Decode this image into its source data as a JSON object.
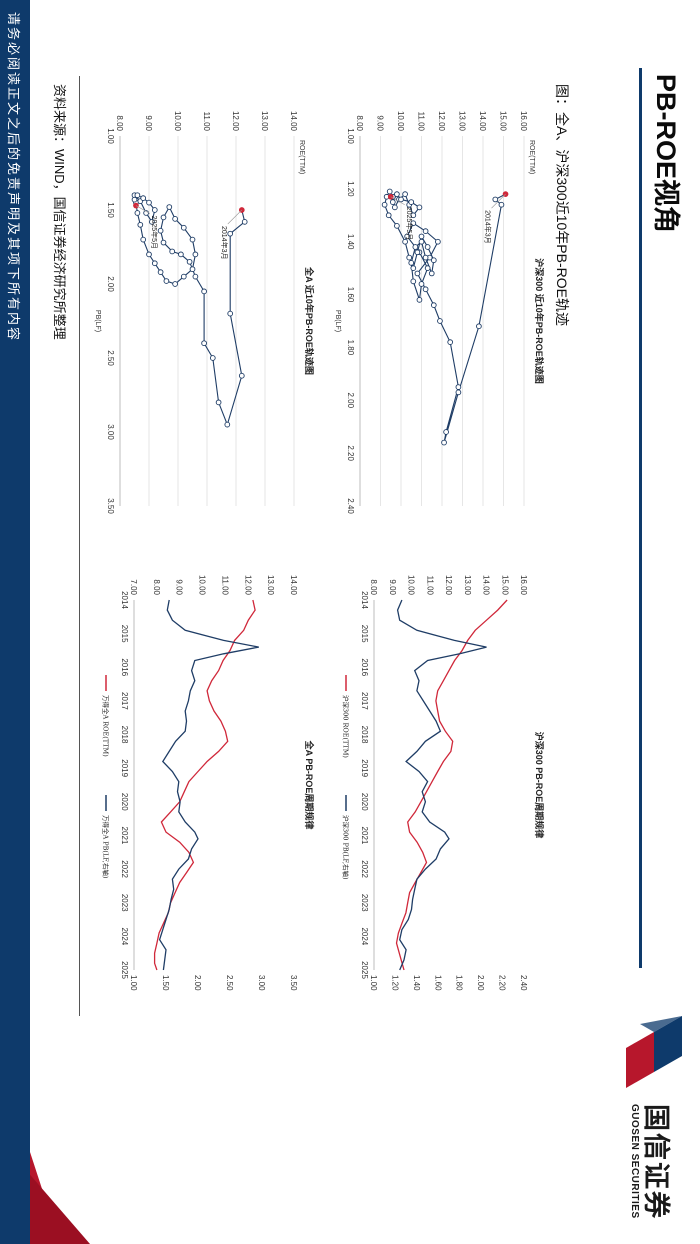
{
  "header": {
    "title": "PB-ROE视角",
    "logo_cn": "国信证券",
    "logo_en": "GUOSEN SECURITIES",
    "colors": {
      "navy": "#0e3a6b",
      "red": "#b7172c"
    }
  },
  "figure_caption": "图：全A、沪深300近10年PB-ROE轨迹",
  "source_note": "资料来源：WIND，国信证券经济研究所整理",
  "disclaimer": "请务必阅读正文之后的免责声明及其项下所有内容",
  "chart_data": [
    {
      "id": "hs300-trajectory",
      "type": "scatter",
      "title": "沪深300 近10年PB-ROE轨迹图",
      "xlabel": "PB(LF)",
      "ylabel": "ROE(TTM)",
      "xlim": [
        1.0,
        2.4
      ],
      "ylim": [
        8.0,
        16.0
      ],
      "xticks": [
        "1.00",
        "1.20",
        "1.40",
        "1.60",
        "1.80",
        "2.00",
        "2.20",
        "2.40"
      ],
      "yticks": [
        "8.00",
        "9.00",
        "10.00",
        "11.00",
        "12.00",
        "13.00",
        "14.00",
        "15.00",
        "16.00"
      ],
      "start_label": "2014年3月",
      "end_label": "2025年5月",
      "colors": {
        "line": "#1f3d66",
        "highlight": "#d0283a"
      },
      "points": [
        [
          1.22,
          15.1
        ],
        [
          1.24,
          14.6
        ],
        [
          1.26,
          14.9
        ],
        [
          1.72,
          13.8
        ],
        [
          1.97,
          12.8
        ],
        [
          2.16,
          12.1
        ],
        [
          2.12,
          12.2
        ],
        [
          1.95,
          12.8
        ],
        [
          1.78,
          12.4
        ],
        [
          1.7,
          11.9
        ],
        [
          1.64,
          11.6
        ],
        [
          1.58,
          11.2
        ],
        [
          1.52,
          10.8
        ],
        [
          1.46,
          11.4
        ],
        [
          1.4,
          11.8
        ],
        [
          1.36,
          11.2
        ],
        [
          1.33,
          10.6
        ],
        [
          1.38,
          10.3
        ],
        [
          1.44,
          10.9
        ],
        [
          1.5,
          11.3
        ],
        [
          1.56,
          11.0
        ],
        [
          1.62,
          10.9
        ],
        [
          1.55,
          10.6
        ],
        [
          1.48,
          10.5
        ],
        [
          1.42,
          10.7
        ],
        [
          1.4,
          11.0
        ],
        [
          1.46,
          11.2
        ],
        [
          1.52,
          11.5
        ],
        [
          1.47,
          11.6
        ],
        [
          1.42,
          11.3
        ],
        [
          1.38,
          11.0
        ],
        [
          1.44,
          10.8
        ],
        [
          1.5,
          10.6
        ],
        [
          1.46,
          10.4
        ],
        [
          1.4,
          10.2
        ],
        [
          1.34,
          9.8
        ],
        [
          1.3,
          9.4
        ],
        [
          1.26,
          9.2
        ],
        [
          1.23,
          9.3
        ],
        [
          1.21,
          9.45
        ],
        [
          1.23,
          9.6
        ],
        [
          1.27,
          9.7
        ],
        [
          1.24,
          9.9
        ],
        [
          1.22,
          10.2
        ],
        [
          1.26,
          10.4
        ],
        [
          1.3,
          10.6
        ],
        [
          1.27,
          10.9
        ],
        [
          1.25,
          10.5
        ],
        [
          1.24,
          10.0
        ],
        [
          1.22,
          9.8
        ],
        [
          1.25,
          9.6
        ],
        [
          1.23,
          9.5
        ]
      ]
    },
    {
      "id": "quanA-trajectory",
      "type": "scatter",
      "title": "全A 近10年PB-ROE轨迹图",
      "xlabel": "PB(LF)",
      "ylabel": "ROE(TTM)",
      "xlim": [
        1.0,
        3.5
      ],
      "ylim": [
        8.0,
        14.0
      ],
      "xticks": [
        "1.00",
        "1.50",
        "2.00",
        "2.50",
        "3.00",
        "3.50"
      ],
      "yticks": [
        "8.00",
        "9.00",
        "10.00",
        "11.00",
        "12.00",
        "13.00",
        "14.00"
      ],
      "start_label": "2014年3月",
      "end_label": "2025年5月",
      "colors": {
        "line": "#1f3d66",
        "highlight": "#d0283a"
      },
      "points": [
        [
          1.5,
          12.2
        ],
        [
          1.58,
          12.3
        ],
        [
          1.66,
          11.8
        ],
        [
          2.2,
          11.8
        ],
        [
          2.62,
          12.2
        ],
        [
          2.95,
          11.7
        ],
        [
          2.8,
          11.4
        ],
        [
          2.5,
          11.2
        ],
        [
          2.4,
          10.9
        ],
        [
          2.05,
          10.9
        ],
        [
          1.95,
          10.6
        ],
        [
          1.85,
          10.4
        ],
        [
          1.8,
          10.1
        ],
        [
          1.78,
          9.8
        ],
        [
          1.72,
          9.5
        ],
        [
          1.64,
          9.4
        ],
        [
          1.55,
          9.5
        ],
        [
          1.48,
          9.7
        ],
        [
          1.56,
          9.9
        ],
        [
          1.62,
          10.2
        ],
        [
          1.7,
          10.5
        ],
        [
          1.8,
          10.6
        ],
        [
          1.9,
          10.5
        ],
        [
          1.95,
          10.2
        ],
        [
          2.0,
          9.9
        ],
        [
          1.98,
          9.6
        ],
        [
          1.92,
          9.4
        ],
        [
          1.86,
          9.2
        ],
        [
          1.8,
          9.0
        ],
        [
          1.7,
          8.8
        ],
        [
          1.6,
          8.7
        ],
        [
          1.52,
          8.6
        ],
        [
          1.45,
          8.55
        ],
        [
          1.4,
          8.5
        ],
        [
          1.44,
          8.7
        ],
        [
          1.52,
          8.9
        ],
        [
          1.58,
          9.1
        ],
        [
          1.5,
          9.2
        ],
        [
          1.45,
          9.0
        ],
        [
          1.42,
          8.8
        ],
        [
          1.4,
          8.6
        ],
        [
          1.43,
          8.5
        ],
        [
          1.47,
          8.55
        ]
      ]
    },
    {
      "id": "hs300-cycle",
      "type": "line",
      "title": "沪深300 PB-ROE周期规律",
      "x_range": [
        "2014",
        "2025"
      ],
      "xticks": [
        "2014",
        "2015",
        "2016",
        "2017",
        "2018",
        "2019",
        "2020",
        "2021",
        "2022",
        "2023",
        "2024",
        "2025"
      ],
      "yticks_left": [
        "8.00",
        "9.00",
        "10.00",
        "11.00",
        "12.00",
        "13.00",
        "14.00",
        "15.00",
        "16.00"
      ],
      "yticks_right": [
        "1.00",
        "1.20",
        "1.40",
        "1.60",
        "1.80",
        "2.00",
        "2.20",
        "2.40"
      ],
      "ylim_left": [
        8.0,
        16.0
      ],
      "ylim_right": [
        1.0,
        2.4
      ],
      "series": [
        {
          "name": "沪深300 ROE(TTM)",
          "axis": "left",
          "color": "#d0283a",
          "x": [
            2014.0,
            2014.3,
            2014.6,
            2014.9,
            2015.2,
            2015.5,
            2015.8,
            2016.1,
            2016.4,
            2016.7,
            2017.0,
            2017.3,
            2017.6,
            2017.9,
            2018.2,
            2018.5,
            2018.8,
            2019.1,
            2019.4,
            2019.7,
            2020.0,
            2020.3,
            2020.6,
            2020.9,
            2021.2,
            2021.5,
            2021.8,
            2022.1,
            2022.4,
            2022.7,
            2023.0,
            2023.3,
            2023.6,
            2023.9,
            2024.2,
            2024.5,
            2024.8,
            2025.0
          ],
          "values": [
            15.1,
            14.6,
            14.0,
            13.4,
            13.0,
            12.7,
            12.3,
            12.0,
            11.7,
            11.4,
            11.3,
            11.4,
            11.5,
            11.8,
            12.2,
            12.1,
            11.7,
            11.4,
            11.1,
            10.8,
            10.5,
            10.2,
            9.8,
            9.9,
            10.3,
            10.6,
            10.8,
            10.5,
            10.2,
            9.9,
            9.8,
            9.7,
            9.5,
            9.3,
            9.2,
            9.35,
            9.5,
            9.6
          ]
        },
        {
          "name": "沪深300 PB(LF,右轴)",
          "axis": "right",
          "color": "#1f3d66",
          "x": [
            2014.0,
            2014.3,
            2014.6,
            2014.9,
            2015.2,
            2015.4,
            2015.6,
            2015.8,
            2016.1,
            2016.4,
            2016.7,
            2017.0,
            2017.3,
            2017.6,
            2017.9,
            2018.2,
            2018.5,
            2018.8,
            2019.1,
            2019.4,
            2019.7,
            2020.0,
            2020.3,
            2020.6,
            2020.9,
            2021.1,
            2021.4,
            2021.7,
            2022.0,
            2022.3,
            2022.6,
            2022.9,
            2023.2,
            2023.5,
            2023.8,
            2024.1,
            2024.4,
            2024.7,
            2025.0
          ],
          "values": [
            1.26,
            1.22,
            1.24,
            1.4,
            1.75,
            2.05,
            1.8,
            1.5,
            1.38,
            1.42,
            1.4,
            1.46,
            1.52,
            1.58,
            1.62,
            1.48,
            1.4,
            1.3,
            1.42,
            1.5,
            1.45,
            1.48,
            1.45,
            1.52,
            1.66,
            1.7,
            1.62,
            1.58,
            1.48,
            1.4,
            1.38,
            1.36,
            1.35,
            1.32,
            1.26,
            1.24,
            1.3,
            1.28,
            1.24
          ]
        }
      ]
    },
    {
      "id": "quanA-cycle",
      "type": "line",
      "title": "全A PB-ROE周期规律",
      "x_range": [
        "2014",
        "2025"
      ],
      "xticks": [
        "2014",
        "2015",
        "2016",
        "2017",
        "2018",
        "2019",
        "2020",
        "2021",
        "2022",
        "2023",
        "2024",
        "2025"
      ],
      "yticks_left": [
        "7.00",
        "8.00",
        "9.00",
        "10.00",
        "11.00",
        "12.00",
        "13.00",
        "14.00"
      ],
      "yticks_right": [
        "1.00",
        "1.50",
        "2.00",
        "2.50",
        "3.00",
        "3.50"
      ],
      "ylim_left": [
        7.0,
        14.0
      ],
      "ylim_right": [
        1.0,
        3.5
      ],
      "series": [
        {
          "name": "万得全A ROE(TTM)",
          "axis": "left",
          "color": "#d0283a",
          "x": [
            2014.0,
            2014.3,
            2014.6,
            2014.9,
            2015.2,
            2015.5,
            2015.8,
            2016.1,
            2016.4,
            2016.7,
            2017.0,
            2017.3,
            2017.6,
            2017.9,
            2018.2,
            2018.5,
            2018.8,
            2019.1,
            2019.4,
            2019.7,
            2020.0,
            2020.3,
            2020.6,
            2020.9,
            2021.2,
            2021.5,
            2021.8,
            2022.1,
            2022.4,
            2022.7,
            2023.0,
            2023.3,
            2023.6,
            2023.9,
            2024.2,
            2024.5,
            2024.8,
            2025.0
          ],
          "values": [
            12.2,
            12.3,
            12.0,
            11.8,
            11.4,
            11.2,
            10.9,
            10.7,
            10.4,
            10.2,
            10.3,
            10.5,
            10.8,
            11.0,
            11.1,
            10.7,
            10.2,
            9.8,
            9.4,
            9.2,
            9.0,
            8.6,
            8.2,
            8.4,
            9.0,
            9.4,
            9.6,
            9.3,
            9.0,
            8.8,
            8.6,
            8.5,
            8.3,
            8.1,
            8.0,
            7.9,
            7.9,
            8.0
          ]
        },
        {
          "name": "万得全A PB(LF,右轴)",
          "axis": "right",
          "color": "#1f3d66",
          "x": [
            2014.0,
            2014.3,
            2014.6,
            2014.9,
            2015.2,
            2015.4,
            2015.6,
            2015.8,
            2016.1,
            2016.4,
            2016.7,
            2017.0,
            2017.3,
            2017.6,
            2017.9,
            2018.2,
            2018.5,
            2018.8,
            2019.1,
            2019.4,
            2019.7,
            2020.0,
            2020.3,
            2020.6,
            2020.9,
            2021.1,
            2021.4,
            2021.7,
            2022.0,
            2022.3,
            2022.6,
            2022.9,
            2023.2,
            2023.5,
            2023.8,
            2024.1,
            2024.4,
            2024.7,
            2025.0
          ],
          "values": [
            1.55,
            1.52,
            1.6,
            1.8,
            2.4,
            2.95,
            2.4,
            1.95,
            1.9,
            1.95,
            1.88,
            1.85,
            1.8,
            1.82,
            1.8,
            1.65,
            1.55,
            1.45,
            1.6,
            1.7,
            1.68,
            1.72,
            1.7,
            1.8,
            1.95,
            2.0,
            1.9,
            1.85,
            1.7,
            1.6,
            1.62,
            1.58,
            1.55,
            1.5,
            1.45,
            1.4,
            1.5,
            1.48,
            1.46
          ]
        }
      ]
    }
  ]
}
